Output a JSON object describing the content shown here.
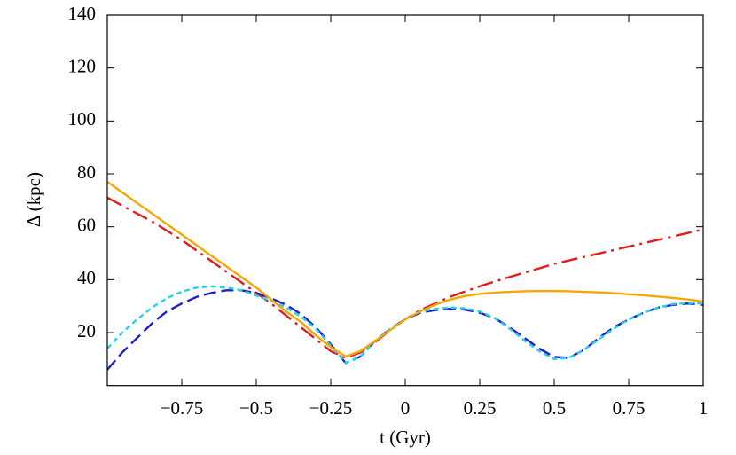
{
  "chart_data": {
    "type": "line",
    "xlabel": "t (Gyr)",
    "ylabel": "Δ (kpc)",
    "xlim": [
      -1,
      1
    ],
    "ylim": [
      0,
      140
    ],
    "xticks": [
      {
        "value": -0.75,
        "label": "−0.75"
      },
      {
        "value": -0.5,
        "label": "−0.5"
      },
      {
        "value": -0.25,
        "label": "−0.25"
      },
      0,
      0.25,
      0.5,
      0.75,
      1
    ],
    "yticks": [
      20,
      40,
      60,
      80,
      100,
      120,
      140
    ],
    "x": [
      -1,
      -0.95,
      -0.9,
      -0.85,
      -0.8,
      -0.75,
      -0.7,
      -0.65,
      -0.6,
      -0.55,
      -0.5,
      -0.45,
      -0.4,
      -0.35,
      -0.3,
      -0.25,
      -0.2,
      -0.15,
      -0.1,
      -0.05,
      0,
      0.05,
      0.1,
      0.15,
      0.2,
      0.25,
      0.3,
      0.35,
      0.4,
      0.45,
      0.5,
      0.55,
      0.6,
      0.65,
      0.7,
      0.75,
      0.8,
      0.85,
      0.9,
      0.95,
      1
    ],
    "series": [
      {
        "color": "#e41a1c",
        "style": "dash-dot",
        "values": [
          71,
          68,
          65,
          62,
          58.5,
          55,
          51,
          47,
          43,
          39,
          35,
          31,
          26.5,
          22,
          17.5,
          13,
          10.5,
          12.5,
          16.5,
          21,
          25,
          28.5,
          31,
          33.5,
          35.5,
          37.5,
          39.3,
          41,
          42.7,
          44.3,
          46,
          47.3,
          48.6,
          49.9,
          51.2,
          52.5,
          53.8,
          55.1,
          56.4,
          57.7,
          59
        ]
      },
      {
        "color": "#1f1fd0",
        "style": "dashed",
        "values": [
          6,
          12.5,
          18,
          23.5,
          28,
          31,
          33.5,
          35,
          36,
          36,
          35,
          33,
          30.5,
          27,
          22,
          15.5,
          8.5,
          11,
          17,
          21.5,
          25,
          27.5,
          28.5,
          29,
          28.7,
          27.5,
          25.5,
          22,
          18,
          14,
          10.8,
          10.5,
          13.5,
          18,
          22,
          25,
          27.5,
          29.5,
          30.5,
          31,
          30.5
        ]
      },
      {
        "color": "#22d3e6",
        "style": "short-dashed",
        "values": [
          14,
          20,
          25,
          29.5,
          33,
          35.5,
          37,
          37.5,
          37,
          36,
          34,
          32,
          29.5,
          26,
          21.5,
          15,
          8.5,
          11,
          17,
          21.5,
          25,
          28,
          29,
          29.5,
          29.2,
          28,
          25.5,
          21.5,
          17,
          13,
          10,
          10.5,
          13.5,
          17.5,
          21.5,
          25,
          27.5,
          29.5,
          30.8,
          31.2,
          31
        ]
      },
      {
        "color": "#f5a800",
        "style": "solid",
        "values": [
          77,
          73,
          69,
          65,
          61,
          57,
          53,
          49,
          45,
          41,
          37,
          32.5,
          28,
          24,
          19,
          14.5,
          11,
          13,
          17,
          21,
          25,
          28,
          30.5,
          32.5,
          33.8,
          34.6,
          35.1,
          35.4,
          35.6,
          35.7,
          35.7,
          35.6,
          35.4,
          35.2,
          34.9,
          34.5,
          34.1,
          33.6,
          33.1,
          32.5,
          31.7
        ]
      }
    ]
  }
}
